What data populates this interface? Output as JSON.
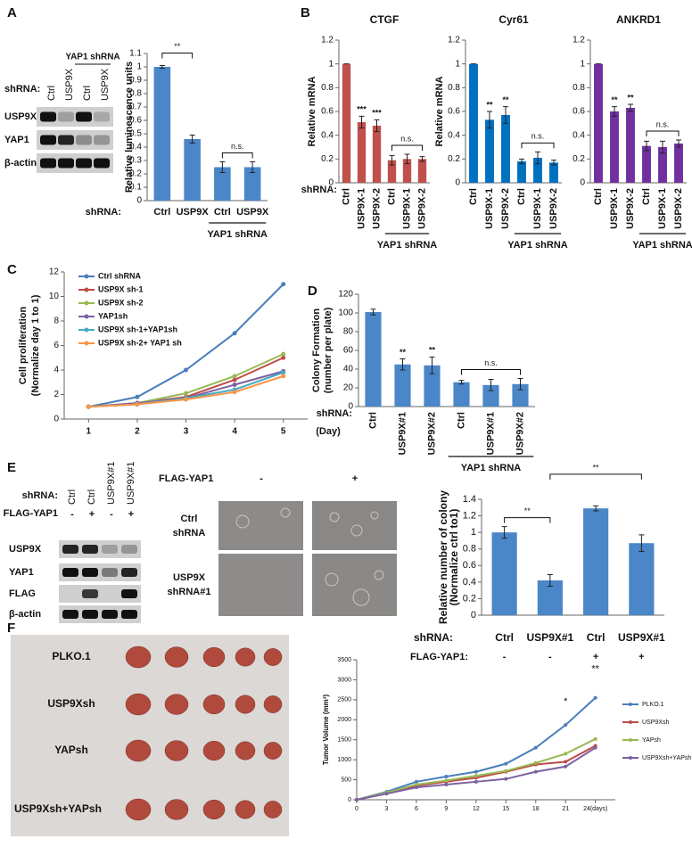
{
  "panels": [
    "A",
    "B",
    "C",
    "D",
    "E",
    "F"
  ],
  "blot_A": {
    "row_label": "shRNA:",
    "columns": [
      "Ctrl",
      "USP9X",
      "Ctrl",
      "USP9X"
    ],
    "group_label": "YAP1 shRNA",
    "rows": [
      "USP9X",
      "YAP1",
      "β-actin"
    ]
  },
  "blot_E": {
    "row_labels": [
      "shRNA:",
      "FLAG-YAP1"
    ],
    "columns": [
      "Ctrl",
      "Ctrl",
      "USP9X#1",
      "USP9X#1"
    ],
    "flag": [
      "-",
      "+",
      "-",
      "+"
    ],
    "rows": [
      "USP9X",
      "YAP1",
      "FLAG",
      "β-actin"
    ]
  },
  "colony_images": {
    "column_label": "FLAG-YAP1",
    "columns": [
      "-",
      "+"
    ],
    "rows": [
      [
        "Ctrl",
        "shRNA"
      ],
      [
        "USP9X",
        "shRNA#1"
      ]
    ]
  },
  "tumor_photo": {
    "rows": [
      "PLKO.1",
      "USP9Xsh",
      "YAPsh",
      "USP9Xsh+YAPsh"
    ]
  },
  "chart_data": [
    {
      "type": "bar",
      "y_label": "Relative luminescence units",
      "x_label": "shRNA:",
      "categories": [
        "Ctrl",
        "USP9X",
        "Ctrl",
        "USP9X"
      ],
      "values": [
        1,
        0.46,
        0.25,
        0.25
      ],
      "errors": [
        0.01,
        0.03,
        0.04,
        0.04
      ],
      "color": "#4a86c8",
      "ylim": [
        0,
        1.1
      ],
      "yticks": [
        0,
        0.1,
        0.2,
        0.3,
        0.4,
        0.5,
        0.6,
        0.7,
        0.8,
        0.9,
        1,
        1.1
      ],
      "group_label": "YAP1 shRNA",
      "annotations": [
        "**",
        "n.s."
      ]
    },
    {
      "type": "bar",
      "title": "CTGF",
      "y_label": "Relative mRNA",
      "x_label": "shRNA:",
      "categories": [
        "Ctrl",
        "USP9X-1",
        "USP9X-2",
        "Ctrl",
        "USP9X-1",
        "USP9X-2"
      ],
      "values": [
        1,
        0.51,
        0.48,
        0.19,
        0.2,
        0.2
      ],
      "errors": [
        0,
        0.05,
        0.05,
        0.04,
        0.04,
        0.02
      ],
      "color": "#c0504d",
      "ylim": [
        0,
        1.2
      ],
      "yticks": [
        0,
        0.2,
        0.4,
        0.6,
        0.8,
        1,
        1.2
      ],
      "group_label": "YAP1 shRNA",
      "annotations": [
        "***",
        "***",
        "n.s."
      ]
    },
    {
      "type": "bar",
      "title": "Cyr61",
      "y_label": "Relative mRNA",
      "categories": [
        "Ctrl",
        "USP9X-1",
        "USP9X-2",
        "Ctrl",
        "USP9X-1",
        "USP9X-2"
      ],
      "values": [
        1,
        0.53,
        0.57,
        0.18,
        0.21,
        0.17
      ],
      "errors": [
        0,
        0.07,
        0.07,
        0.02,
        0.05,
        0.02
      ],
      "color": "#0070c0",
      "ylim": [
        0,
        1.2
      ],
      "yticks": [
        0,
        0.2,
        0.4,
        0.6,
        0.8,
        1,
        1.2
      ],
      "group_label": "YAP1 shRNA",
      "annotations": [
        "**",
        "**",
        "n.s."
      ]
    },
    {
      "type": "bar",
      "title": "ANKRD1",
      "categories": [
        "Ctrl",
        "USP9X-1",
        "USP9X-2",
        "Ctrl",
        "USP9X-1",
        "USP9X-2"
      ],
      "values": [
        1,
        0.6,
        0.63,
        0.31,
        0.3,
        0.33
      ],
      "errors": [
        0,
        0.04,
        0.03,
        0.04,
        0.05,
        0.03
      ],
      "color": "#7030a0",
      "ylim": [
        0,
        1.2
      ],
      "yticks": [
        0,
        0.2,
        0.4,
        0.6,
        0.8,
        1,
        1.2
      ],
      "group_label": "YAP1 shRNA",
      "annotations": [
        "**",
        "**",
        "n.s."
      ]
    },
    {
      "type": "line",
      "y_label": [
        "Cell proliferation",
        "(Normalize day 1 to 1)"
      ],
      "x_label": "(Day)",
      "x": [
        1,
        2,
        3,
        4,
        5
      ],
      "xlim": [
        0.5,
        5.5
      ],
      "xticks": [
        1,
        2,
        3,
        4,
        5
      ],
      "ylim": [
        0,
        12
      ],
      "yticks": [
        0,
        2,
        4,
        6,
        8,
        10,
        12
      ],
      "series": [
        {
          "name": "Ctrl shRNA",
          "color": "#4a7ebb",
          "values": [
            1,
            1.8,
            4,
            7,
            11
          ]
        },
        {
          "name": "USP9X sh-1",
          "color": "#be4b48",
          "values": [
            1,
            1.3,
            1.8,
            3.2,
            5
          ]
        },
        {
          "name": "USP9X sh-2",
          "color": "#98b954",
          "values": [
            1,
            1.3,
            2.1,
            3.5,
            5.3
          ]
        },
        {
          "name": "YAP1sh",
          "color": "#7d60a0",
          "values": [
            1,
            1.3,
            1.7,
            2.8,
            3.9
          ]
        },
        {
          "name": "USP9X sh-1+YAP1sh",
          "color": "#46aac5",
          "values": [
            1,
            1.2,
            1.7,
            2.4,
            3.8
          ]
        },
        {
          "name": "USP9X sh-2+ YAP1 sh",
          "color": "#f79646",
          "values": [
            1,
            1.2,
            1.6,
            2.2,
            3.5
          ]
        }
      ]
    },
    {
      "type": "bar",
      "y_label": [
        "Colony Formation",
        "(number per plate)"
      ],
      "x_label": "shRNA:",
      "categories": [
        "Ctrl",
        "USP9X#1",
        "USP9X#2",
        "Ctrl",
        "USP9X#1",
        "USP9X#2"
      ],
      "values": [
        101,
        45,
        44,
        26,
        23,
        24
      ],
      "errors": [
        3,
        6,
        9,
        2,
        6,
        6
      ],
      "color": "#4a86c8",
      "ylim": [
        0,
        120
      ],
      "yticks": [
        0,
        20,
        40,
        60,
        80,
        100,
        120
      ],
      "group_label": "YAP1 shRNA",
      "annotations": [
        "**",
        "**",
        "n.s."
      ]
    },
    {
      "type": "bar",
      "y_label": [
        "Relative number of colony",
        "(Normalize ctrl to1)"
      ],
      "x_label": "shRNA:",
      "categories": [
        "Ctrl",
        "USP9X#1",
        "Ctrl",
        "USP9X#1"
      ],
      "values": [
        1,
        0.42,
        1.29,
        0.87
      ],
      "errors": [
        0.07,
        0.07,
        0.03,
        0.1
      ],
      "color": "#4a86c8",
      "ylim": [
        0,
        1.4
      ],
      "yticks": [
        0,
        0.2,
        0.4,
        0.6,
        0.8,
        1,
        1.2,
        1.4
      ],
      "extra_row": {
        "label": "FLAG-YAP1:",
        "values": [
          "-",
          "-",
          "+",
          "+"
        ]
      },
      "annotations": [
        "**",
        "**"
      ]
    },
    {
      "type": "line",
      "y_label": "Tumor Volume (mm³)",
      "x": [
        0,
        3,
        6,
        9,
        12,
        15,
        18,
        21,
        24
      ],
      "xlim": [
        0,
        26
      ],
      "xticks": [
        0,
        3,
        6,
        9,
        12,
        15,
        18,
        21,
        {
          "value": 24,
          "label": "24(days)"
        }
      ],
      "ylim": [
        0,
        3500
      ],
      "yticks": [
        0,
        500,
        1000,
        1500,
        2000,
        2500,
        3000,
        3500
      ],
      "series": [
        {
          "name": "PLKO.1",
          "color": "#4a7ebb",
          "values": [
            0,
            200,
            450,
            580,
            700,
            900,
            1300,
            1870,
            2550
          ]
        },
        {
          "name": "USP9Xsh",
          "color": "#be4b48",
          "values": [
            0,
            160,
            350,
            450,
            550,
            700,
            880,
            950,
            1350
          ]
        },
        {
          "name": "YAPsh",
          "color": "#98b954",
          "values": [
            0,
            180,
            380,
            480,
            600,
            720,
            920,
            1150,
            1520
          ]
        },
        {
          "name": "USP9Xsh+YAPsh",
          "color": "#7d60a0",
          "values": [
            0,
            150,
            310,
            380,
            450,
            520,
            700,
            830,
            1300
          ]
        }
      ],
      "annotations": [
        "*",
        "**"
      ]
    }
  ]
}
